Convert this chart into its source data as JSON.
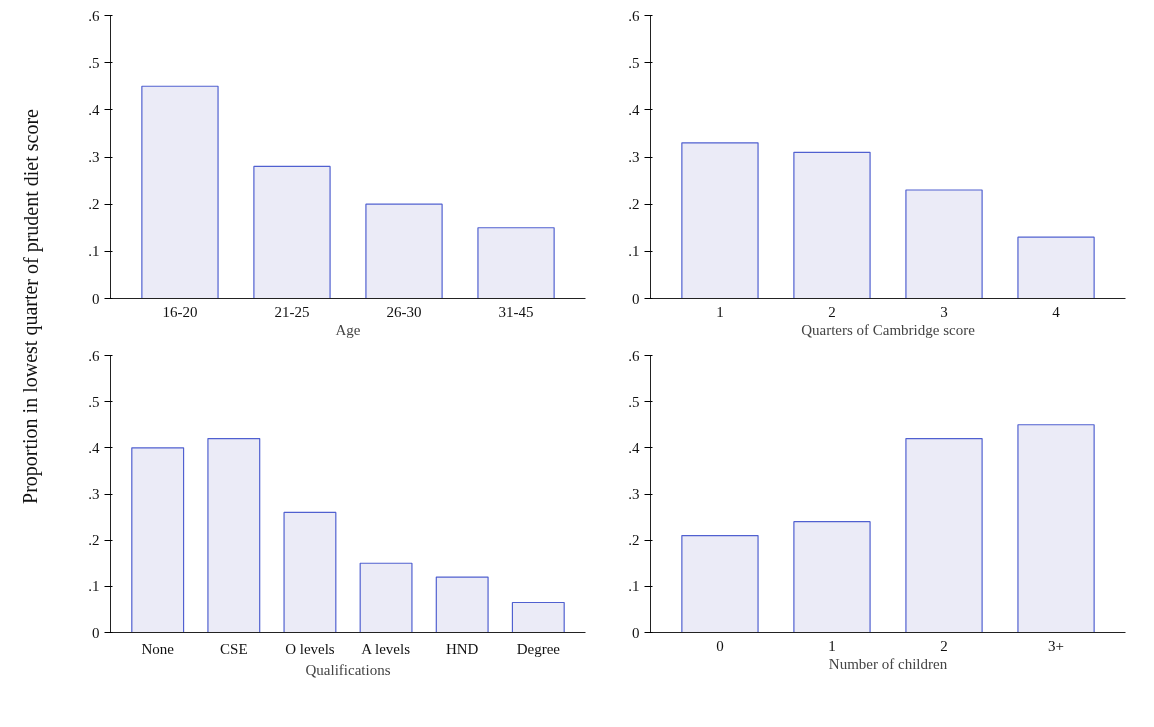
{
  "chart_data": [
    {
      "type": "bar",
      "ylabel": "Proportion in lowest quarter of prudent diet score",
      "xlabel": "Age",
      "categories": [
        "16-20",
        "21-25",
        "26-30",
        "31-45"
      ],
      "values": [
        0.45,
        0.28,
        0.2,
        0.15
      ],
      "color": "#ebebf7",
      "ylim": [
        0,
        0.6
      ],
      "yticks": [
        0,
        {
          "value": 0.1,
          "label": ".1"
        },
        {
          "value": 0.2,
          "label": ".2"
        },
        {
          "value": 0.3,
          "label": ".3"
        },
        {
          "value": 0.4,
          "label": ".4"
        },
        {
          "value": 0.5,
          "label": ".5"
        },
        {
          "value": 0.6,
          "label": ".6"
        }
      ]
    },
    {
      "type": "bar",
      "xlabel": "Quarters of Cambridge score",
      "categories": [
        "1",
        "2",
        "3",
        "4"
      ],
      "values": [
        0.33,
        0.31,
        0.23,
        0.13
      ],
      "color": "#ebebf7",
      "ylim": [
        0,
        0.6
      ],
      "yticks": [
        0,
        {
          "value": 0.1,
          "label": ".1"
        },
        {
          "value": 0.2,
          "label": ".2"
        },
        {
          "value": 0.3,
          "label": ".3"
        },
        {
          "value": 0.4,
          "label": ".4"
        },
        {
          "value": 0.5,
          "label": ".5"
        },
        {
          "value": 0.6,
          "label": ".6"
        }
      ]
    },
    {
      "type": "bar",
      "xlabel": "Qualifications",
      "categories": [
        "None",
        "CSE",
        "O levels",
        "A levels",
        "HND",
        "Degree"
      ],
      "values": [
        0.4,
        0.42,
        0.26,
        0.15,
        0.12,
        0.065
      ],
      "color": "#ebebf7",
      "ylim": [
        0,
        0.6
      ],
      "yticks": [
        0,
        {
          "value": 0.1,
          "label": ".1"
        },
        {
          "value": 0.2,
          "label": ".2"
        },
        {
          "value": 0.3,
          "label": ".3"
        },
        {
          "value": 0.4,
          "label": ".4"
        },
        {
          "value": 0.5,
          "label": ".5"
        },
        {
          "value": 0.6,
          "label": ".6"
        }
      ]
    },
    {
      "type": "bar",
      "xlabel": "Number of children",
      "categories": [
        "0",
        "1",
        "2",
        "3+"
      ],
      "values": [
        0.21,
        0.24,
        0.42,
        0.45
      ],
      "color": "#ebebf7",
      "ylim": [
        0,
        0.6
      ],
      "yticks": [
        0,
        {
          "value": 0.1,
          "label": ".1"
        },
        {
          "value": 0.2,
          "label": ".2"
        },
        {
          "value": 0.3,
          "label": ".3"
        },
        {
          "value": 0.4,
          "label": ".4"
        },
        {
          "value": 0.5,
          "label": ".5"
        },
        {
          "value": 0.6,
          "label": ".6"
        }
      ]
    }
  ]
}
